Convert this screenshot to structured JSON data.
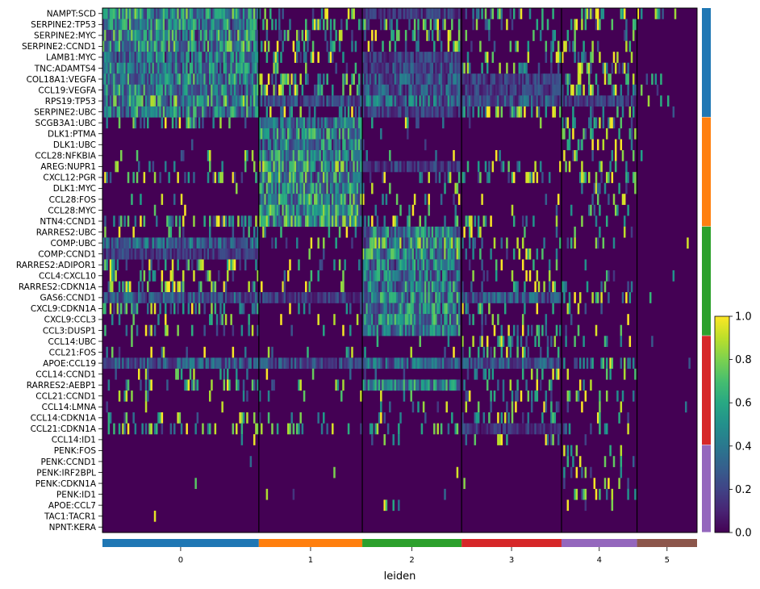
{
  "chart_data": {
    "type": "heatmap",
    "xlabel": "leiden",
    "genes": [
      "NAMPT:SCD",
      "SERPINE2:TP53",
      "SERPINE2:MYC",
      "SERPINE2:CCND1",
      "LAMB1:MYC",
      "TNC:ADAMTS4",
      "COL18A1:VEGFA",
      "CCL19:VEGFA",
      "RPS19:TP53",
      "SERPINE2:UBC",
      "SCGB3A1:UBC",
      "DLK1:PTMA",
      "DLK1:UBC",
      "CCL28:NFKBIA",
      "AREG:NUPR1",
      "CXCL12:PGR",
      "DLK1:MYC",
      "CCL28:FOS",
      "CCL28:MYC",
      "NTN4:CCND1",
      "RARRES2:UBC",
      "COMP:UBC",
      "COMP:CCND1",
      "RARRES2:ADIPOR1",
      "CCL4:CXCL10",
      "RARRES2:CDKN1A",
      "GAS6:CCND1",
      "CXCL9:CDKN1A",
      "CXCL9:CCL3",
      "CCL3:DUSP1",
      "CCL14:UBC",
      "CCL21:FOS",
      "APOE:CCL19",
      "CCL14:CCND1",
      "RARRES2:AEBP1",
      "CCL21:CCND1",
      "CCL14:LMNA",
      "CCL14:CDKN1A",
      "CCL21:CDKN1A",
      "CCL14:ID1",
      "PENK:FOS",
      "PENK:CCND1",
      "PENK:IRF2BPL",
      "PENK:CDKN1A",
      "PENK:ID1",
      "APOE:CCL7",
      "TAC1:TACR1",
      "NPNT:KERA"
    ],
    "clusters": [
      {
        "label": "0",
        "color": "#1f77b4",
        "cell_fraction": 0.263
      },
      {
        "label": "1",
        "color": "#ff7f0e",
        "cell_fraction": 0.174
      },
      {
        "label": "2",
        "color": "#2ca02c",
        "cell_fraction": 0.167
      },
      {
        "label": "3",
        "color": "#d62728",
        "cell_fraction": 0.168
      },
      {
        "label": "4",
        "color": "#9467bd",
        "cell_fraction": 0.127
      },
      {
        "label": "5",
        "color": "#8c564b",
        "cell_fraction": 0.101
      }
    ],
    "gene_groups": [
      {
        "cluster": "0",
        "color": "#1f77b4",
        "gene_count": 10
      },
      {
        "cluster": "1",
        "color": "#ff7f0e",
        "gene_count": 10
      },
      {
        "cluster": "2",
        "color": "#2ca02c",
        "gene_count": 10
      },
      {
        "cluster": "3",
        "color": "#d62728",
        "gene_count": 10
      },
      {
        "cluster": "4",
        "color": "#9467bd",
        "gene_count": 8
      }
    ],
    "mean_expression": [
      [
        0.55,
        0.12,
        0.18,
        0.1,
        0.12,
        0.03
      ],
      [
        0.5,
        0.08,
        0.15,
        0.08,
        0.1,
        0.02
      ],
      [
        0.55,
        0.08,
        0.12,
        0.06,
        0.1,
        0.02
      ],
      [
        0.55,
        0.1,
        0.15,
        0.08,
        0.1,
        0.02
      ],
      [
        0.45,
        0.1,
        0.2,
        0.1,
        0.12,
        0.02
      ],
      [
        0.45,
        0.06,
        0.25,
        0.15,
        0.08,
        0.02
      ],
      [
        0.5,
        0.15,
        0.3,
        0.2,
        0.12,
        0.03
      ],
      [
        0.5,
        0.15,
        0.3,
        0.2,
        0.15,
        0.03
      ],
      [
        0.6,
        0.25,
        0.4,
        0.3,
        0.2,
        0.04
      ],
      [
        0.5,
        0.1,
        0.2,
        0.15,
        0.1,
        0.02
      ],
      [
        0.08,
        0.45,
        0.08,
        0.05,
        0.15,
        0.02
      ],
      [
        0.02,
        0.5,
        0.03,
        0.02,
        0.08,
        0.01
      ],
      [
        0.02,
        0.5,
        0.03,
        0.02,
        0.1,
        0.01
      ],
      [
        0.04,
        0.5,
        0.05,
        0.03,
        0.08,
        0.01
      ],
      [
        0.08,
        0.6,
        0.2,
        0.1,
        0.1,
        0.02
      ],
      [
        0.1,
        0.55,
        0.1,
        0.08,
        0.08,
        0.02
      ],
      [
        0.02,
        0.5,
        0.03,
        0.02,
        0.06,
        0.01
      ],
      [
        0.03,
        0.55,
        0.04,
        0.03,
        0.06,
        0.01
      ],
      [
        0.03,
        0.55,
        0.04,
        0.03,
        0.06,
        0.01
      ],
      [
        0.15,
        0.6,
        0.1,
        0.08,
        0.08,
        0.02
      ],
      [
        0.05,
        0.05,
        0.45,
        0.05,
        0.04,
        0.01
      ],
      [
        0.35,
        0.08,
        0.6,
        0.1,
        0.06,
        0.02
      ],
      [
        0.2,
        0.05,
        0.6,
        0.08,
        0.05,
        0.02
      ],
      [
        0.1,
        0.04,
        0.45,
        0.06,
        0.04,
        0.01
      ],
      [
        0.08,
        0.04,
        0.45,
        0.08,
        0.04,
        0.01
      ],
      [
        0.12,
        0.05,
        0.5,
        0.1,
        0.06,
        0.02
      ],
      [
        0.3,
        0.2,
        0.5,
        0.3,
        0.1,
        0.03
      ],
      [
        0.15,
        0.06,
        0.5,
        0.1,
        0.05,
        0.01
      ],
      [
        0.05,
        0.03,
        0.5,
        0.06,
        0.03,
        0.01
      ],
      [
        0.08,
        0.05,
        0.45,
        0.1,
        0.04,
        0.01
      ],
      [
        0.02,
        0.02,
        0.03,
        0.12,
        0.03,
        0.01
      ],
      [
        0.04,
        0.04,
        0.05,
        0.1,
        0.02,
        0.01
      ],
      [
        0.3,
        0.25,
        0.35,
        0.3,
        0.1,
        0.02
      ],
      [
        0.05,
        0.03,
        0.05,
        0.12,
        0.04,
        0.01
      ],
      [
        0.1,
        0.06,
        0.5,
        0.15,
        0.05,
        0.01
      ],
      [
        0.05,
        0.03,
        0.05,
        0.12,
        0.04,
        0.01
      ],
      [
        0.03,
        0.02,
        0.04,
        0.1,
        0.03,
        0.01
      ],
      [
        0.05,
        0.04,
        0.06,
        0.12,
        0.04,
        0.01
      ],
      [
        0.12,
        0.08,
        0.1,
        0.18,
        0.06,
        0.02
      ],
      [
        0.02,
        0.02,
        0.03,
        0.08,
        0.02,
        0.01
      ],
      [
        0.01,
        0.01,
        0.01,
        0.01,
        0.06,
        0.0
      ],
      [
        0.01,
        0.01,
        0.01,
        0.01,
        0.06,
        0.0
      ],
      [
        0.01,
        0.01,
        0.01,
        0.01,
        0.05,
        0.0
      ],
      [
        0.01,
        0.01,
        0.01,
        0.01,
        0.06,
        0.0
      ],
      [
        0.01,
        0.01,
        0.01,
        0.01,
        0.06,
        0.0
      ],
      [
        0.02,
        0.01,
        0.03,
        0.02,
        0.04,
        0.0
      ],
      [
        0.01,
        0.0,
        0.0,
        0.0,
        0.0,
        0.0
      ],
      [
        0.0,
        0.01,
        0.0,
        0.0,
        0.0,
        0.0
      ]
    ],
    "colorbar": {
      "colormap": "viridis",
      "range": [
        0.0,
        1.0
      ],
      "ticks": [
        "0.0",
        "0.2",
        "0.4",
        "0.6",
        "0.8",
        "1.0"
      ]
    }
  }
}
